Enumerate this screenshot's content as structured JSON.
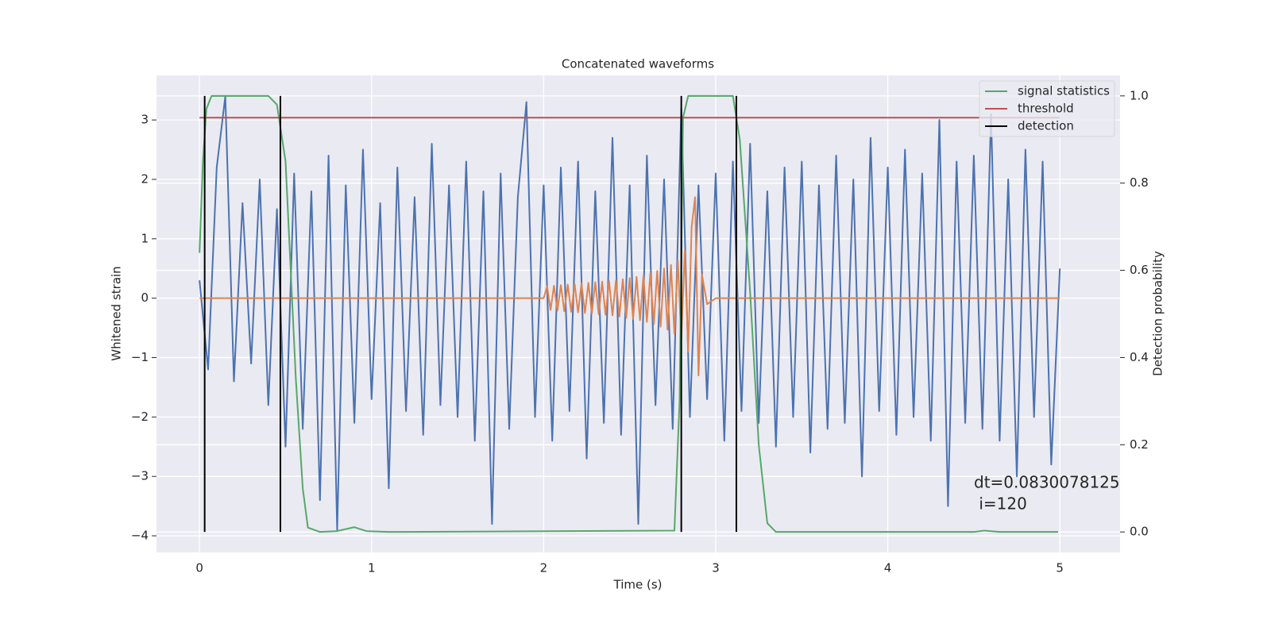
{
  "chart_data": {
    "type": "line",
    "title": "Concatenated waveforms",
    "xlabel": "Time (s)",
    "ylabel": "Whitened strain",
    "y2label": "Detection probability",
    "xlim": [
      -0.25,
      5.35
    ],
    "ylim": [
      -4.28,
      3.75
    ],
    "y2lim": [
      -0.047,
      1.047
    ],
    "xticks": [
      0,
      1,
      2,
      3,
      4,
      5
    ],
    "yticks": [
      {
        "value": -4,
        "label": "−4"
      },
      {
        "value": -3,
        "label": "−3"
      },
      {
        "value": -2,
        "label": "−2"
      },
      {
        "value": -1,
        "label": "−1"
      },
      0,
      1,
      2,
      3
    ],
    "y2ticks": [
      {
        "value": 0,
        "label": "0.0"
      },
      0.2,
      0.4,
      0.6,
      0.8,
      {
        "value": 1,
        "label": "1.0"
      }
    ],
    "grid": true,
    "legend": "upper right",
    "series": [
      {
        "color": "#4c72b0",
        "x": [
          0,
          0.05,
          0.1,
          0.15,
          0.2,
          0.25,
          0.3,
          0.35,
          0.4,
          0.45,
          0.5,
          0.55,
          0.6,
          0.65,
          0.7,
          0.75,
          0.8,
          0.85,
          0.9,
          0.95,
          1,
          1.05,
          1.1,
          1.15,
          1.2,
          1.25,
          1.3,
          1.35,
          1.4,
          1.45,
          1.5,
          1.55,
          1.6,
          1.65,
          1.7,
          1.75,
          1.8,
          1.85,
          1.9,
          1.95,
          2,
          2.05,
          2.1,
          2.15,
          2.2,
          2.25,
          2.3,
          2.35,
          2.4,
          2.45,
          2.5,
          2.55,
          2.6,
          2.65,
          2.7,
          2.75,
          2.8,
          2.85,
          2.9,
          2.95,
          3,
          3.05,
          3.1,
          3.15,
          3.2,
          3.25,
          3.3,
          3.35,
          3.4,
          3.45,
          3.5,
          3.55,
          3.6,
          3.65,
          3.7,
          3.75,
          3.8,
          3.85,
          3.9,
          3.95,
          4,
          4.05,
          4.1,
          4.15,
          4.2,
          4.25,
          4.3,
          4.35,
          4.4,
          4.45,
          4.5,
          4.55,
          4.6,
          4.65,
          4.7,
          4.75,
          4.8,
          4.85,
          4.9,
          4.95,
          5
        ],
        "values": [
          0.3,
          -1.2,
          2.2,
          3.4,
          -1.4,
          1.6,
          -1.1,
          2.0,
          -1.8,
          1.5,
          -2.5,
          2.1,
          -2.2,
          1.8,
          -3.4,
          2.4,
          -3.9,
          1.9,
          -2.1,
          2.5,
          -1.7,
          1.6,
          -3.2,
          2.2,
          -1.9,
          1.7,
          -2.3,
          2.6,
          -1.8,
          1.9,
          -2.0,
          2.3,
          -2.4,
          1.8,
          -3.8,
          2.1,
          -2.2,
          1.7,
          3.3,
          -2.0,
          1.9,
          -2.4,
          2.2,
          -1.9,
          2.3,
          -2.7,
          1.8,
          -2.1,
          2.7,
          -2.3,
          1.9,
          -3.8,
          2.4,
          -1.8,
          2.0,
          -2.2,
          3.2,
          -2.0,
          1.9,
          -1.7,
          2.1,
          -2.4,
          2.3,
          -1.9,
          2.6,
          -2.1,
          1.8,
          -2.5,
          2.2,
          -2.0,
          2.3,
          -2.6,
          1.9,
          -2.2,
          2.4,
          -2.1,
          2.0,
          -3.0,
          2.7,
          -1.9,
          2.2,
          -2.3,
          2.5,
          -2.0,
          2.1,
          -2.4,
          3.0,
          -3.5,
          2.3,
          -2.1,
          2.4,
          -2.2,
          3.1,
          -2.4,
          2.0,
          -3.0,
          2.5,
          -2.0,
          2.3,
          -2.8,
          0.5
        ]
      },
      {
        "color": "#dd8452",
        "x": [
          0,
          2.0,
          2.02,
          2.04,
          2.06,
          2.08,
          2.1,
          2.12,
          2.14,
          2.16,
          2.18,
          2.2,
          2.22,
          2.24,
          2.26,
          2.28,
          2.3,
          2.32,
          2.34,
          2.36,
          2.38,
          2.4,
          2.42,
          2.44,
          2.46,
          2.48,
          2.5,
          2.52,
          2.54,
          2.56,
          2.58,
          2.6,
          2.62,
          2.64,
          2.66,
          2.68,
          2.7,
          2.72,
          2.74,
          2.76,
          2.78,
          2.8,
          2.82,
          2.84,
          2.86,
          2.88,
          2.9,
          2.92,
          2.95,
          3.0,
          5.0
        ],
        "values": [
          0,
          0,
          0.2,
          -0.2,
          0.21,
          -0.21,
          0.22,
          -0.22,
          0.23,
          -0.23,
          0.24,
          -0.24,
          0.25,
          -0.25,
          0.26,
          -0.26,
          0.27,
          -0.27,
          0.28,
          -0.28,
          0.29,
          -0.29,
          0.3,
          -0.31,
          0.32,
          -0.33,
          0.34,
          -0.35,
          0.36,
          -0.37,
          0.38,
          -0.4,
          0.42,
          -0.44,
          0.46,
          -0.48,
          0.5,
          -0.53,
          0.56,
          -0.6,
          0.64,
          -0.7,
          0.8,
          -0.9,
          1.2,
          1.7,
          -1.3,
          0.4,
          -0.1,
          0,
          0
        ]
      },
      {
        "name": "signal statistics",
        "color": "#55a868",
        "axis": "y2",
        "x": [
          0,
          0.02,
          0.04,
          0.07,
          0.4,
          0.45,
          0.5,
          0.53,
          0.56,
          0.6,
          0.63,
          0.7,
          0.8,
          0.9,
          0.97,
          1.1,
          2.76,
          2.79,
          2.81,
          2.84,
          3.1,
          3.14,
          3.2,
          3.25,
          3.3,
          3.35,
          4.5,
          4.56,
          4.65,
          4.99
        ],
        "values": [
          0.64,
          0.85,
          0.97,
          1.0,
          1.0,
          0.98,
          0.85,
          0.6,
          0.35,
          0.1,
          0.01,
          0.0,
          0.002,
          0.011,
          0.002,
          0,
          0.003,
          0.3,
          0.95,
          1.0,
          1.0,
          0.9,
          0.55,
          0.2,
          0.02,
          0,
          0,
          0.003,
          0,
          0
        ]
      },
      {
        "name": "threshold",
        "color": "#c44e52",
        "axis": "y2",
        "x": [
          0,
          5
        ],
        "values": [
          0.95,
          0.95
        ]
      },
      {
        "name": "detection",
        "color": "#000000",
        "axis": "y2",
        "style": "vlines",
        "x": [
          0.03,
          0.47,
          2.8,
          3.12
        ],
        "y_range": [
          0,
          1
        ]
      }
    ],
    "annotation": [
      "dt=0.0830078125",
      " i=120"
    ]
  }
}
